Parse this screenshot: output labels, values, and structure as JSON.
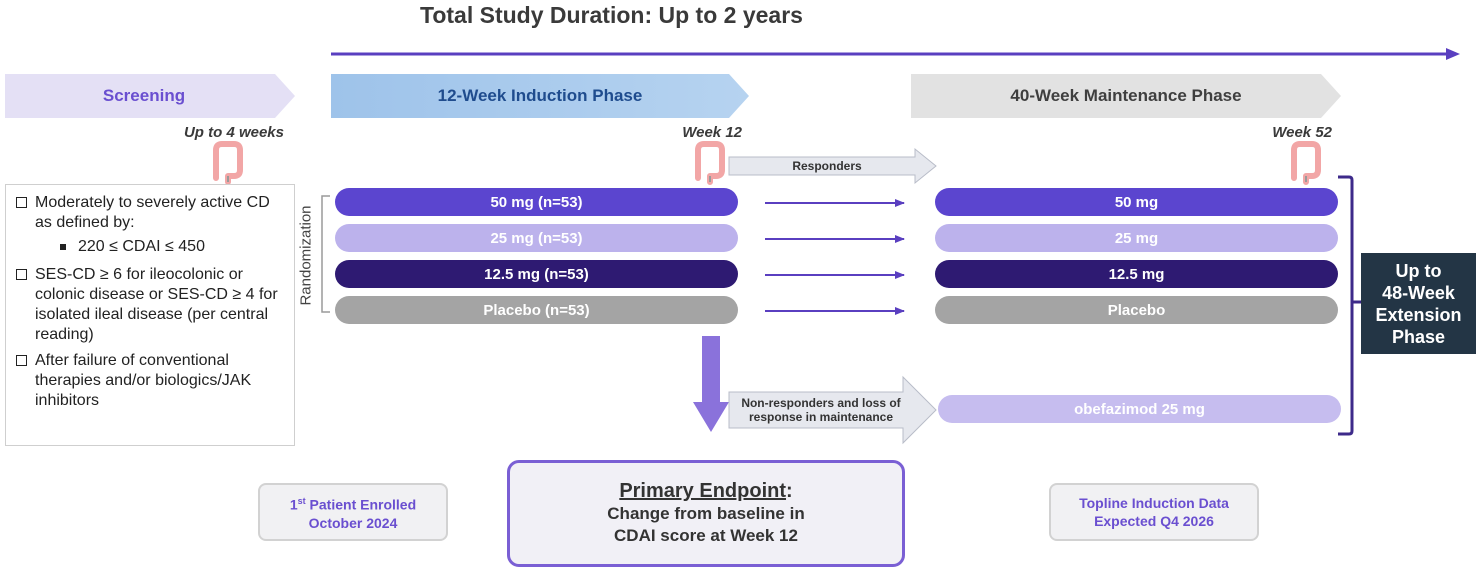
{
  "title": "Total Study Duration: Up to 2 years",
  "phases": {
    "screening": "Screening",
    "induction": "12-Week Induction Phase",
    "maintenance": "40-Week Maintenance Phase"
  },
  "timepoints": {
    "screening": "Up to 4 weeks",
    "week12": "Week 12",
    "week52": "Week 52"
  },
  "criteria": {
    "item1": "Moderately to severely active CD as defined by:",
    "sub1": "220 ≤ CDAI ≤ 450",
    "item2": "SES-CD ≥ 6 for ileocolonic or colonic disease or SES-CD ≥ 4 for isolated ileal disease (per central reading)",
    "item3": "After failure of conventional therapies and/or biologics/JAK inhibitors"
  },
  "randomization_label": "Randomization",
  "induction_arms": [
    "50 mg (n=53)",
    "25 mg (n=53)",
    "12.5 mg (n=53)",
    "Placebo (n=53)"
  ],
  "maintenance_arms": [
    "50 mg",
    "25 mg",
    "12.5 mg",
    "Placebo"
  ],
  "responders_label": "Responders",
  "nonresponders_label": "Non-responders and loss of\nresponse in maintenance",
  "rescue_arm": "obefazimod 25 mg",
  "extension": "Up to\n48-Week\nExtension\nPhase",
  "first_patient": {
    "line1_num": "1",
    "line1_sup": "st",
    "line1_rest": " Patient Enrolled",
    "line2": "October 2024"
  },
  "endpoint": {
    "title": "Primary Endpoint",
    "colon": ":",
    "body": "Change from baseline in\nCDAI score at Week 12"
  },
  "topline": {
    "line1": "Topline Induction Data",
    "line2": "Expected Q4 2026"
  },
  "colors": {
    "dose_50": "#5b45cf",
    "dose_25": "#bcb2ec",
    "dose_12_5": "#2e1a72",
    "placebo": "#a4a4a4",
    "accent": "#5a3fc0",
    "colon_icon": "#f2a6a6"
  },
  "icons": [
    "colon-icon"
  ]
}
